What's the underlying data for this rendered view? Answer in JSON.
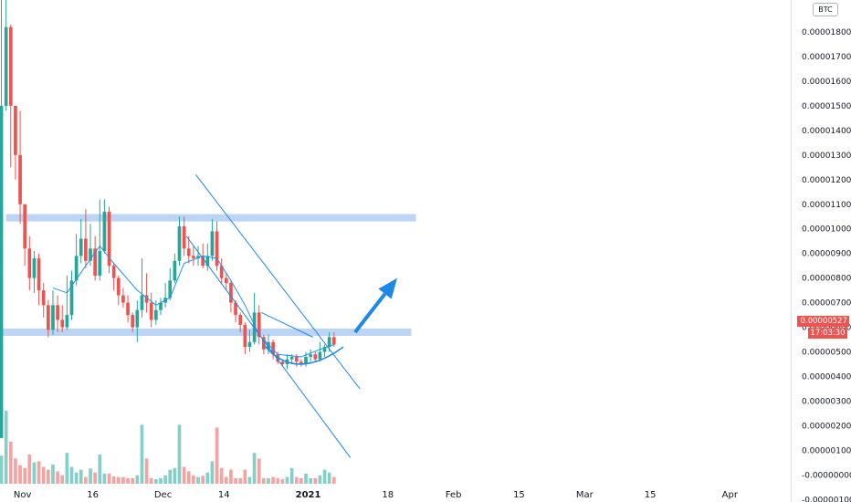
{
  "chart_data": {
    "type": "candlestick",
    "quote_currency": "BTC",
    "last_price_label": "0.00000527",
    "countdown_label": "17:03:30",
    "colors": {
      "up": "#26a69a",
      "down": "#ef5350",
      "up_volume": "#84cfc8",
      "down_volume": "#f5a3a1",
      "zone": "#bcd5f5",
      "annotation": "#1e88e5",
      "ma": "#2196f3"
    },
    "y_ticks": [
      "0.00001800",
      "0.00001700",
      "0.00001600",
      "0.00001500",
      "0.00001400",
      "0.00001300",
      "0.00001200",
      "0.00001100",
      "0.00001000",
      "0.00000900",
      "0.00000800",
      "0.00000700",
      "0.00000600",
      "0.00000500",
      "0.00000400",
      "0.00000300",
      "0.00000200",
      "0.00000100",
      "-0.00000000",
      "-0.00000100"
    ],
    "y_tick_values": [
      18,
      17,
      16,
      15,
      14,
      13,
      12,
      11,
      10,
      9,
      8,
      7,
      6,
      5,
      4,
      3,
      2,
      1,
      0,
      -1
    ],
    "ylim": [
      -1.1,
      19.3
    ],
    "x_ticks": [
      {
        "label": "Nov",
        "day": 0,
        "bold": false
      },
      {
        "label": "16",
        "day": 15,
        "bold": false
      },
      {
        "label": "Dec",
        "day": 30,
        "bold": false
      },
      {
        "label": "14",
        "day": 43,
        "bold": false
      },
      {
        "label": "2021",
        "day": 61,
        "bold": true
      },
      {
        "label": "18",
        "day": 78,
        "bold": false
      },
      {
        "label": "Feb",
        "day": 92,
        "bold": false
      },
      {
        "label": "15",
        "day": 106,
        "bold": false
      },
      {
        "label": "Mar",
        "day": 120,
        "bold": false
      },
      {
        "label": "15",
        "day": 134,
        "bold": false
      },
      {
        "label": "Apr",
        "day": 151,
        "bold": false
      }
    ],
    "xlim": [
      -4.8,
      164
    ],
    "candles": [
      [
        -4.5,
        1.5,
        15.0,
        19.5,
        1.5
      ],
      [
        -3.5,
        15.0,
        18.2,
        19.3,
        14.8
      ],
      [
        -2.5,
        18.2,
        15.0,
        18.3,
        12.5
      ],
      [
        -1.5,
        15.0,
        13.0,
        15.0,
        12.0
      ],
      [
        -0.5,
        13.0,
        11.0,
        14.8,
        10.2
      ],
      [
        0.5,
        11.0,
        9.2,
        11.0,
        8.5
      ],
      [
        1.5,
        9.2,
        8.0,
        9.7,
        7.5
      ],
      [
        2.5,
        8.0,
        8.8,
        9.1,
        7.4
      ],
      [
        3.5,
        8.8,
        7.5,
        9.0,
        6.9
      ],
      [
        4.5,
        7.5,
        6.9,
        7.8,
        6.4
      ],
      [
        5.5,
        6.9,
        5.9,
        7.1,
        5.6
      ],
      [
        6.5,
        5.9,
        6.9,
        7.5,
        5.7
      ],
      [
        7.5,
        6.9,
        6.3,
        7.3,
        5.8
      ],
      [
        8.5,
        6.3,
        6.0,
        6.9,
        5.8
      ],
      [
        9.5,
        6.0,
        6.5,
        8.1,
        5.9
      ],
      [
        10.5,
        6.5,
        7.9,
        8.3,
        6.3
      ],
      [
        11.5,
        7.9,
        8.9,
        9.8,
        7.7
      ],
      [
        12.5,
        8.9,
        9.6,
        10.4,
        8.6
      ],
      [
        13.5,
        9.6,
        8.7,
        10.8,
        8.4
      ],
      [
        14.5,
        8.7,
        9.2,
        10.2,
        8.5
      ],
      [
        15.5,
        9.2,
        8.1,
        9.7,
        7.9
      ],
      [
        16.5,
        8.1,
        9.1,
        11.2,
        7.9
      ],
      [
        17.5,
        9.1,
        10.7,
        11.2,
        9.0
      ],
      [
        18.5,
        10.7,
        8.5,
        10.9,
        8.2
      ],
      [
        19.5,
        8.5,
        8.0,
        8.6,
        7.5
      ],
      [
        20.5,
        8.0,
        7.3,
        8.1,
        6.9
      ],
      [
        21.5,
        7.3,
        7.0,
        7.6,
        6.8
      ],
      [
        22.5,
        7.0,
        6.5,
        7.3,
        6.2
      ],
      [
        23.5,
        6.5,
        6.0,
        6.6,
        5.8
      ],
      [
        24.5,
        6.0,
        6.7,
        7.1,
        5.4
      ],
      [
        25.5,
        6.7,
        7.3,
        8.8,
        6.4
      ],
      [
        26.5,
        7.3,
        7.0,
        8.2,
        6.6
      ],
      [
        27.5,
        7.0,
        6.3,
        7.4,
        6.0
      ],
      [
        28.5,
        6.3,
        6.7,
        7.1,
        6.1
      ],
      [
        29.5,
        6.7,
        7.0,
        7.2,
        6.5
      ],
      [
        30.5,
        7.0,
        7.2,
        7.8,
        6.8
      ],
      [
        31.5,
        7.2,
        7.9,
        8.4,
        7.1
      ],
      [
        32.5,
        7.9,
        8.7,
        9.0,
        7.8
      ],
      [
        33.5,
        8.7,
        10.1,
        10.5,
        8.5
      ],
      [
        34.5,
        10.1,
        9.2,
        10.5,
        8.9
      ],
      [
        35.5,
        9.2,
        8.9,
        9.7,
        8.6
      ],
      [
        36.5,
        8.9,
        8.8,
        9.3,
        8.5
      ],
      [
        37.5,
        8.8,
        8.9,
        9.3,
        8.5
      ],
      [
        38.5,
        8.9,
        8.5,
        9.4,
        8.4
      ],
      [
        39.5,
        8.5,
        8.9,
        9.4,
        8.3
      ],
      [
        40.5,
        8.9,
        9.9,
        10.4,
        8.7
      ],
      [
        41.5,
        9.9,
        8.5,
        10.3,
        8.3
      ],
      [
        42.5,
        8.5,
        8.0,
        8.8,
        7.8
      ],
      [
        43.5,
        8.0,
        7.8,
        8.2,
        7.5
      ],
      [
        44.5,
        7.8,
        7.0,
        7.9,
        6.6
      ],
      [
        45.5,
        7.0,
        6.5,
        7.1,
        6.2
      ],
      [
        46.5,
        6.5,
        6.1,
        6.6,
        5.8
      ],
      [
        47.5,
        6.1,
        5.2,
        6.2,
        4.9
      ],
      [
        48.5,
        5.2,
        5.4,
        5.9,
        5.0
      ],
      [
        49.5,
        5.4,
        6.6,
        7.4,
        5.3
      ],
      [
        50.5,
        6.6,
        5.6,
        6.9,
        5.3
      ],
      [
        51.5,
        5.6,
        5.1,
        5.7,
        4.9
      ],
      [
        52.5,
        5.1,
        5.4,
        5.7,
        4.9
      ],
      [
        53.5,
        5.4,
        4.9,
        5.5,
        4.7
      ],
      [
        54.5,
        4.9,
        4.6,
        5.0,
        4.5
      ],
      [
        55.5,
        4.6,
        4.5,
        4.7,
        4.4
      ],
      [
        56.5,
        4.5,
        4.7,
        4.9,
        4.3
      ],
      [
        57.5,
        4.7,
        4.8,
        4.9,
        4.5
      ],
      [
        58.5,
        4.8,
        4.6,
        4.9,
        4.4
      ],
      [
        59.5,
        4.6,
        4.5,
        4.7,
        4.4
      ],
      [
        60.5,
        4.5,
        4.8,
        5.0,
        4.4
      ],
      [
        61.5,
        4.8,
        4.9,
        5.1,
        4.6
      ],
      [
        62.5,
        4.9,
        4.7,
        5.0,
        4.6
      ],
      [
        63.5,
        4.7,
        5.0,
        5.4,
        4.6
      ],
      [
        64.5,
        5.0,
        5.2,
        5.3,
        4.8
      ],
      [
        65.5,
        5.2,
        5.6,
        5.8,
        5.0
      ],
      [
        66.5,
        5.6,
        5.3,
        5.8,
        5.2
      ]
    ],
    "volumes": [
      [
        -4.5,
        0.5,
        "up"
      ],
      [
        -3.5,
        1.3,
        "up"
      ],
      [
        -2.5,
        0.75,
        "down"
      ],
      [
        -1.5,
        0.45,
        "down"
      ],
      [
        -0.5,
        0.33,
        "down"
      ],
      [
        0.5,
        0.28,
        "down"
      ],
      [
        1.5,
        0.52,
        "down"
      ],
      [
        2.5,
        0.38,
        "up"
      ],
      [
        3.5,
        0.4,
        "down"
      ],
      [
        4.5,
        0.3,
        "down"
      ],
      [
        5.5,
        0.25,
        "down"
      ],
      [
        6.5,
        0.34,
        "up"
      ],
      [
        7.5,
        0.22,
        "down"
      ],
      [
        8.5,
        0.15,
        "down"
      ],
      [
        9.5,
        0.55,
        "up"
      ],
      [
        10.5,
        0.3,
        "up"
      ],
      [
        11.5,
        0.2,
        "up"
      ],
      [
        12.5,
        0.25,
        "up"
      ],
      [
        13.5,
        0.12,
        "down"
      ],
      [
        14.5,
        0.27,
        "up"
      ],
      [
        15.5,
        0.2,
        "down"
      ],
      [
        16.5,
        0.52,
        "up"
      ],
      [
        17.5,
        0.18,
        "up"
      ],
      [
        18.5,
        0.18,
        "down"
      ],
      [
        19.5,
        0.13,
        "down"
      ],
      [
        20.5,
        0.12,
        "down"
      ],
      [
        21.5,
        0.12,
        "down"
      ],
      [
        22.5,
        0.1,
        "down"
      ],
      [
        23.5,
        0.1,
        "down"
      ],
      [
        24.5,
        0.15,
        "up"
      ],
      [
        25.5,
        1.05,
        "up"
      ],
      [
        26.5,
        0.45,
        "down"
      ],
      [
        27.5,
        0.1,
        "down"
      ],
      [
        28.5,
        0.08,
        "up"
      ],
      [
        29.5,
        0.1,
        "up"
      ],
      [
        30.5,
        0.15,
        "up"
      ],
      [
        31.5,
        0.25,
        "up"
      ],
      [
        32.5,
        0.28,
        "up"
      ],
      [
        33.5,
        1.05,
        "up"
      ],
      [
        34.5,
        0.3,
        "down"
      ],
      [
        35.5,
        0.22,
        "down"
      ],
      [
        36.5,
        0.15,
        "down"
      ],
      [
        37.5,
        0.12,
        "up"
      ],
      [
        38.5,
        0.14,
        "down"
      ],
      [
        39.5,
        0.2,
        "up"
      ],
      [
        40.5,
        0.4,
        "up"
      ],
      [
        41.5,
        1.0,
        "down"
      ],
      [
        42.5,
        0.28,
        "down"
      ],
      [
        43.5,
        0.12,
        "down"
      ],
      [
        44.5,
        0.25,
        "down"
      ],
      [
        45.5,
        0.1,
        "down"
      ],
      [
        46.5,
        0.1,
        "down"
      ],
      [
        47.5,
        0.25,
        "down"
      ],
      [
        48.5,
        0.12,
        "up"
      ],
      [
        49.5,
        0.55,
        "up"
      ],
      [
        50.5,
        0.45,
        "down"
      ],
      [
        51.5,
        0.1,
        "down"
      ],
      [
        52.5,
        0.1,
        "up"
      ],
      [
        53.5,
        0.12,
        "down"
      ],
      [
        54.5,
        0.1,
        "down"
      ],
      [
        55.5,
        0.08,
        "down"
      ],
      [
        56.5,
        0.12,
        "up"
      ],
      [
        57.5,
        0.28,
        "up"
      ],
      [
        58.5,
        0.12,
        "down"
      ],
      [
        59.5,
        0.1,
        "down"
      ],
      [
        60.5,
        0.18,
        "up"
      ],
      [
        61.5,
        0.1,
        "up"
      ],
      [
        62.5,
        0.1,
        "down"
      ],
      [
        63.5,
        0.15,
        "up"
      ],
      [
        64.5,
        0.25,
        "up"
      ],
      [
        65.5,
        0.2,
        "up"
      ],
      [
        66.5,
        0.12,
        "down"
      ]
    ],
    "moving_average": [
      [
        6.5,
        7.6
      ],
      [
        9.5,
        7.4
      ],
      [
        13.5,
        8.5
      ],
      [
        16.5,
        9.3
      ],
      [
        19.5,
        8.6
      ],
      [
        24.5,
        7.5
      ],
      [
        28.5,
        6.9
      ],
      [
        31.5,
        7.2
      ],
      [
        34.5,
        8.6
      ],
      [
        38.5,
        8.9
      ],
      [
        41.5,
        8.8
      ],
      [
        44.5,
        7.9
      ],
      [
        47.5,
        6.9
      ],
      [
        50.5,
        5.7
      ],
      [
        54.5,
        4.9
      ],
      [
        59.5,
        4.8
      ],
      [
        63.5,
        5.1
      ],
      [
        66.5,
        5.3
      ]
    ],
    "zones": [
      {
        "name": "resistance-zone",
        "day_start": -3.5,
        "day_end": 84,
        "low": 10.3,
        "high": 10.6
      },
      {
        "name": "support-zone",
        "day_start": -4.5,
        "day_end": 83,
        "low": 5.65,
        "high": 5.95
      }
    ],
    "channel_lines": [
      [
        [
          37,
          12.2
        ],
        [
          72,
          3.5
        ]
      ],
      [
        [
          35,
          9.7
        ],
        [
          70,
          0.7
        ]
      ],
      [
        [
          51,
          6.6
        ],
        [
          62,
          5.6
        ]
      ]
    ],
    "curve": [
      [
        51.5,
        5.3
      ],
      [
        58,
        4.2
      ],
      [
        68.5,
        5.2
      ]
    ],
    "arrow": [
      [
        71,
        5.8
      ],
      [
        80,
        8.0
      ]
    ]
  }
}
